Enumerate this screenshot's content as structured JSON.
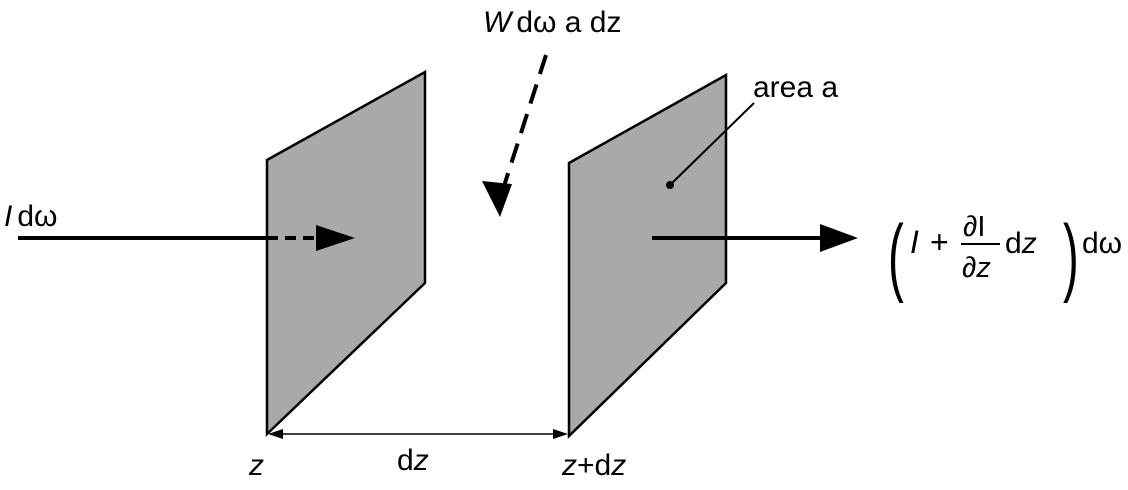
{
  "colors": {
    "panel_fill": "#a9a9a9",
    "stroke": "#000000",
    "background": "#ffffff"
  },
  "labels": {
    "incoming_i": "I",
    "incoming_rest": "dω",
    "source_w": "W",
    "source_rest": "dω a dz",
    "area": "area a",
    "z_left": "z",
    "gap_d": "d",
    "gap_z": "z",
    "z_right_z": "z",
    "z_right_rest": "+d",
    "z_right_z2": "z"
  },
  "formula": {
    "open_paren": "(",
    "i": "I",
    "plus": "+",
    "numerator": "∂I",
    "denom_partial": "∂",
    "denom_z": "z",
    "dz_d": "d",
    "dz_z": "z",
    "close_paren": ")",
    "d_omega": "dω"
  }
}
